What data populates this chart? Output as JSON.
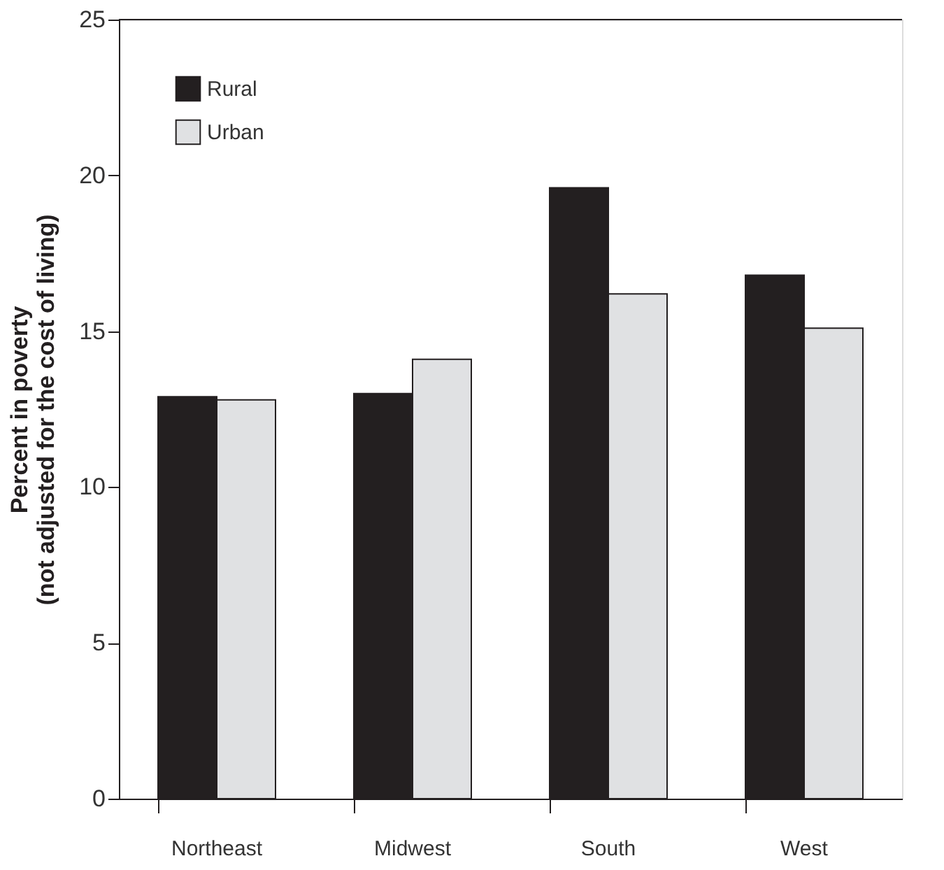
{
  "chart_data": {
    "type": "bar",
    "ylabel": "Percent in poverty\n(not adjusted for the cost of living)",
    "categories": [
      "Northeast",
      "Midwest",
      "South",
      "West"
    ],
    "series": [
      {
        "name": "Rural",
        "color": "#231f20",
        "values": [
          12.9,
          13.0,
          19.6,
          16.8
        ]
      },
      {
        "name": "Urban",
        "color": "#e0e1e3",
        "values": [
          12.8,
          14.1,
          16.2,
          15.1
        ]
      }
    ],
    "ylim": [
      0,
      25
    ],
    "yticks": [
      0,
      5,
      10,
      15,
      20,
      25
    ],
    "grid": false,
    "legend": "top left"
  }
}
